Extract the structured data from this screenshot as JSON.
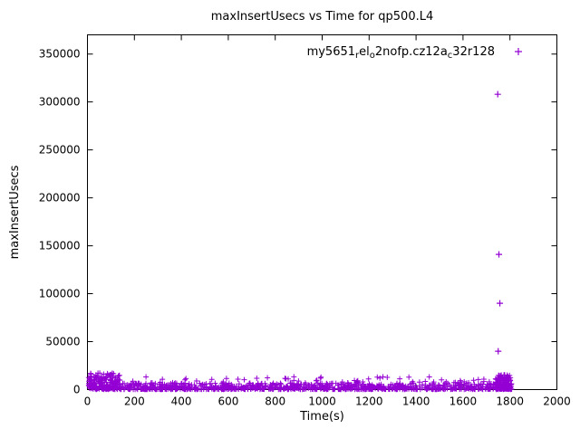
{
  "window": {
    "background": "#ffffff"
  },
  "chart_data": {
    "type": "scatter",
    "title": "maxInsertUsecs vs Time for qp500.L4",
    "xlabel": "Time(s)",
    "ylabel": "maxInsertUsecs",
    "xlim": [
      0,
      2000
    ],
    "ylim": [
      0,
      370000
    ],
    "xticks": [
      0,
      200,
      400,
      600,
      800,
      1000,
      1200,
      1400,
      1600,
      1800,
      2000
    ],
    "yticks": [
      0,
      50000,
      100000,
      150000,
      200000,
      250000,
      300000,
      350000
    ],
    "grid": false,
    "legend_position": "top-right-inside",
    "marker": "plus",
    "marker_color": "#9400D3",
    "axis_color": "#000000",
    "legend": {
      "plain_text": "my5651_rel_o2nofp.cz12a_c32r128",
      "parts": [
        {
          "text": "my5651",
          "sub": false
        },
        {
          "text": "r",
          "sub": true
        },
        {
          "text": "el",
          "sub": false
        },
        {
          "text": "o",
          "sub": true
        },
        {
          "text": "2nofp.cz12a",
          "sub": false
        },
        {
          "text": "c",
          "sub": true
        },
        {
          "text": "32r128",
          "sub": false
        }
      ]
    },
    "outliers": [
      [
        1748,
        308000
      ],
      [
        1753,
        141000
      ],
      [
        1757,
        90000
      ],
      [
        1750,
        40000
      ]
    ],
    "band_segments": [
      {
        "count": 950,
        "x": [
          2,
          1815
        ],
        "y": [
          300,
          6500
        ],
        "bias": 2.2
      },
      {
        "count": 90,
        "x": [
          2,
          1815
        ],
        "y": [
          6500,
          13500
        ],
        "bias": 2.5
      },
      {
        "count": 140,
        "x": [
          3,
          140
        ],
        "y": [
          1000,
          17500
        ],
        "bias": 1.6
      },
      {
        "count": 130,
        "x": [
          1738,
          1802
        ],
        "y": [
          500,
          15500
        ],
        "bias": 1.8
      },
      {
        "count": 12,
        "x": [
          150,
          1700
        ],
        "y": [
          9000,
          13000
        ],
        "bias": 1.0
      }
    ],
    "seed": 42
  }
}
